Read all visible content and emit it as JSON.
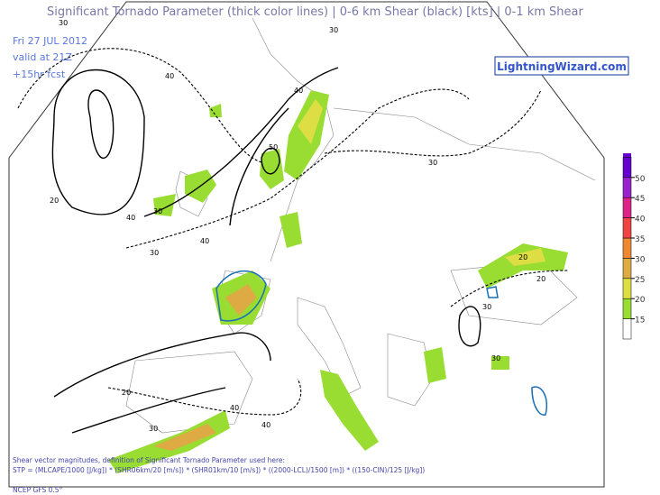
{
  "header": {
    "title": "Significant Tornado Parameter (thick color lines) | 0-6 km Shear (black) [kts] | 0-1 km Shear",
    "date": "Fri 27 JUL 2012",
    "valid": "valid at 21Z",
    "forecast": "+15hr fcst",
    "brand": "LightningWizard.com"
  },
  "colorbar": {
    "levels": [
      15,
      20,
      25,
      30,
      35,
      40,
      45,
      50
    ],
    "colors": [
      "#ffffff",
      "#99dd33",
      "#dddd44",
      "#ddaa44",
      "#ee8833",
      "#ee4444",
      "#dd2288",
      "#9922cc",
      "#6600cc"
    ]
  },
  "contour_labels": [
    30,
    40,
    40,
    50,
    40,
    30,
    30,
    40,
    30,
    30,
    20,
    20,
    20,
    30,
    30,
    40,
    40,
    30,
    20
  ],
  "footer": {
    "line1": "Shear vector magnitudes, definition of Significant Tornado Parameter used here:",
    "line2": "STP = (MLCAPE/1000 [J/kg]) * (SHR06km/20 [m/s]) * (SHR01km/10 [m/s]) * ((2000-LCL)/1500 [m]) * ((150-CIN)/125 [J/kg])",
    "line3": "NCEP GFS 0.5°"
  }
}
